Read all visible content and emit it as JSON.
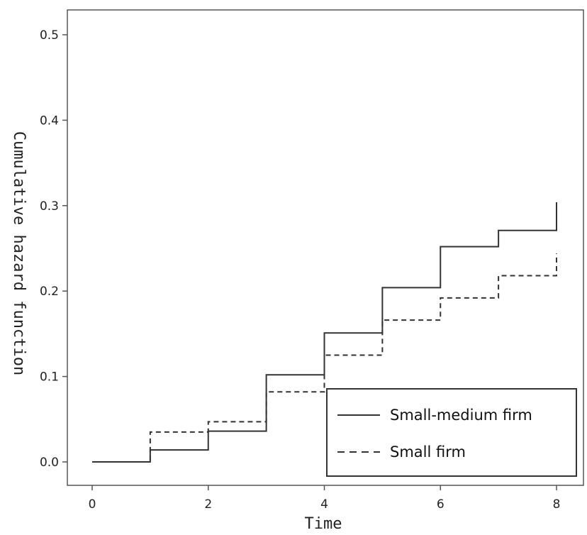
{
  "chart_data": {
    "type": "line",
    "step": true,
    "xlabel": "Time",
    "ylabel": "Cumulative hazard function",
    "xlim": [
      0,
      8
    ],
    "ylim": [
      0,
      0.5
    ],
    "xticks": [
      "0",
      "2",
      "4",
      "6",
      "8"
    ],
    "yticks": [
      "0.0",
      "0.1",
      "0.2",
      "0.3",
      "0.4",
      "0.5"
    ],
    "grid": false,
    "legend_position": "bottom-right",
    "series": [
      {
        "name": "Small-medium firm",
        "line_style": "solid",
        "color": "#333333",
        "x": [
          0,
          1,
          2,
          3,
          4,
          5,
          6,
          7,
          8
        ],
        "y": [
          0.0,
          0.014,
          0.036,
          0.102,
          0.151,
          0.204,
          0.252,
          0.271,
          0.304
        ]
      },
      {
        "name": "Small firm",
        "line_style": "dashed",
        "color": "#333333",
        "x": [
          0,
          1,
          2,
          3,
          4,
          5,
          6,
          7,
          8
        ],
        "y": [
          0.0,
          0.035,
          0.047,
          0.082,
          0.125,
          0.166,
          0.192,
          0.218,
          0.244
        ]
      }
    ]
  }
}
